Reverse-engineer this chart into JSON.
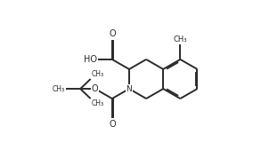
{
  "bg_color": "#ffffff",
  "line_color": "#2a2a2a",
  "line_width": 1.4,
  "fig_width": 2.84,
  "fig_height": 1.78,
  "dpi": 100,
  "xlim": [
    0.0,
    9.5
  ],
  "ylim": [
    0.2,
    6.2
  ]
}
